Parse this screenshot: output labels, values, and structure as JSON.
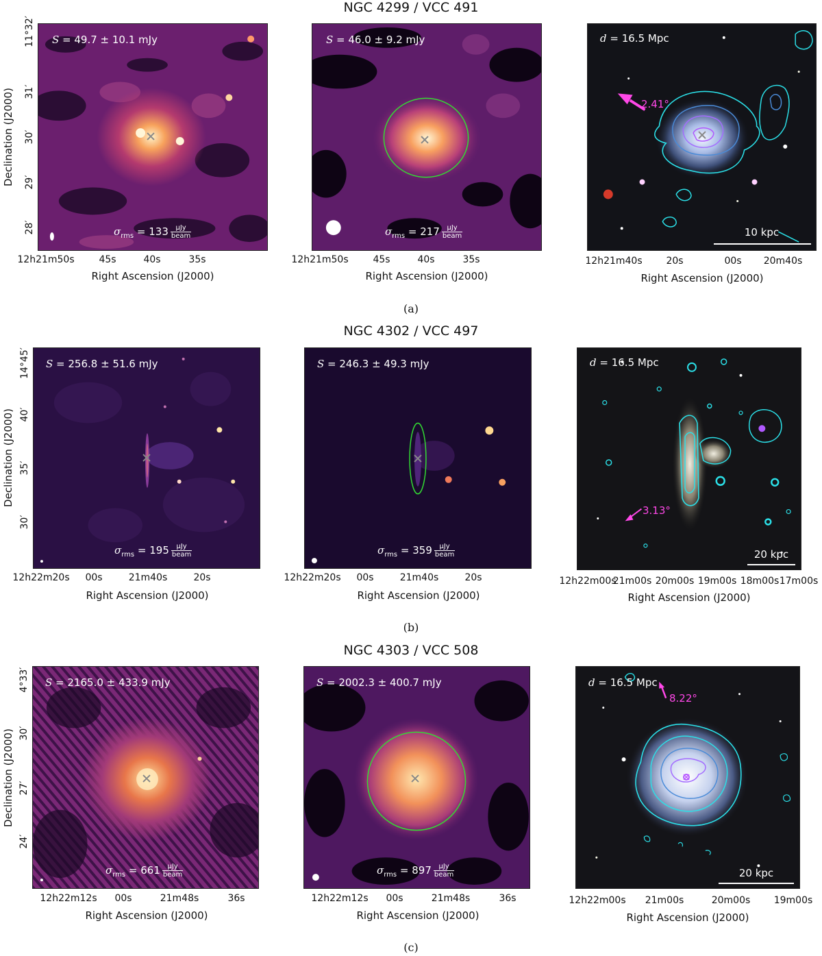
{
  "rows": [
    {
      "title": "NGC 4299 / VCC 491",
      "caption": "(a)",
      "flux_left": "49.7 ± 10.1 mJy",
      "flux_mid": "46.0 ± 9.2 mJy",
      "rms_left": "133",
      "rms_mid": "217",
      "distance": "16.5 Mpc",
      "arrow_angle": "2.41°",
      "scale_bar": "10 kpc",
      "y_ticks": [
        "11°32′",
        "31′",
        "30′",
        "29′",
        "28′"
      ],
      "x_ticks_left": [
        "12h21m50s",
        "45s",
        "40s",
        "35s"
      ],
      "x_ticks_mid": [
        "12h21m50s",
        "45s",
        "40s",
        "35s"
      ],
      "x_ticks_right": [
        "12h21m40s",
        "20s",
        "00s",
        "20m40s"
      ]
    },
    {
      "title": "NGC 4302 / VCC 497",
      "caption": "(b)",
      "flux_left": "256.8 ± 51.6 mJy",
      "flux_mid": "246.3 ± 49.3 mJy",
      "rms_left": "195",
      "rms_mid": "359",
      "distance": "16.5 Mpc",
      "arrow_angle": "3.13°",
      "scale_bar": "20 kpc",
      "y_ticks": [
        "14°45′",
        "40′",
        "35′",
        "30′"
      ],
      "x_ticks_left": [
        "12h22m20s",
        "00s",
        "21m40s",
        "20s"
      ],
      "x_ticks_mid": [
        "12h22m20s",
        "00s",
        "21m40s",
        "20s"
      ],
      "x_ticks_right": [
        "12h22m00s",
        "21m00s",
        "20m00s",
        "19m00s",
        "18m00s",
        "17m00s"
      ]
    },
    {
      "title": "NGC 4303 / VCC 508",
      "caption": "(c)",
      "flux_left": "2165.0 ± 433.9 mJy",
      "flux_mid": "2002.3 ± 400.7 mJy",
      "rms_left": "661",
      "rms_mid": "897",
      "distance": "16.5 Mpc",
      "arrow_angle": "8.22°",
      "scale_bar": "20 kpc",
      "y_ticks": [
        "4°33′",
        "30′",
        "27′",
        "24′"
      ],
      "x_ticks_left": [
        "12h22m12s",
        "00s",
        "21m48s",
        "36s"
      ],
      "x_ticks_mid": [
        "12h22m12s",
        "00s",
        "21m48s",
        "36s"
      ],
      "x_ticks_right": [
        "12h22m00s",
        "21m00s",
        "20m00s",
        "19m00s"
      ]
    }
  ],
  "labels": {
    "xlabel": "Right Ascension (J2000)",
    "ylabel": "Declination (J2000)",
    "flux_symbol": "S",
    "rms_symbol": "σ",
    "rms_sub": "rms",
    "rms_unit_num": "μJy",
    "rms_unit_den": "beam",
    "distance_symbol": "d"
  },
  "colors": {
    "radio_bg": "#2a0a3a",
    "radio_mid": "#8a2a7a",
    "radio_bright": "#fcd39a",
    "ellipse": "#33dd33",
    "contour_outer": "#2be0e8",
    "contour_inner": "#a36bff",
    "arrow": "#ff48e8"
  }
}
